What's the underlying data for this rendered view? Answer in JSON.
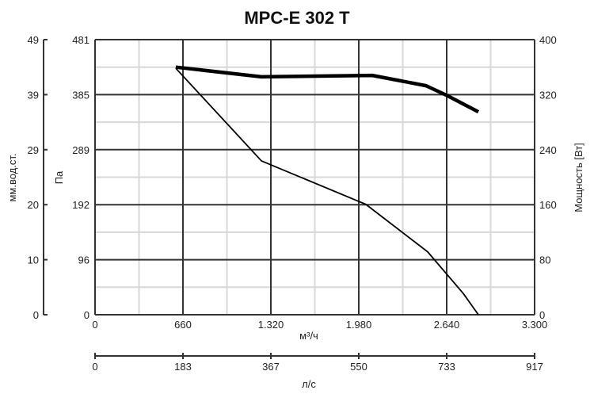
{
  "chart_data": {
    "type": "line",
    "title": "MPC-E 302 T",
    "xlabel": "м³/ч",
    "xlabel_secondary": "л/с",
    "ylabel_left_outer": "мм.вод.ст.",
    "ylabel_left": "Па",
    "ylabel_right": "Мощность [Вт]",
    "xlim": [
      0,
      3300
    ],
    "ylim": [
      0,
      481
    ],
    "ylim_right": [
      0,
      400
    ],
    "grid": true,
    "x_ticks": [
      "0",
      "660",
      "1.320",
      "1.980",
      "2.640",
      "3.300"
    ],
    "x2_ticks": [
      "0",
      "183",
      "367",
      "550",
      "733",
      "917"
    ],
    "y_ticks": [
      "0",
      "96",
      "192",
      "289",
      "385",
      "481"
    ],
    "y_outer_ticks": [
      "0",
      "10",
      "20",
      "29",
      "39",
      "49"
    ],
    "y_right_ticks": [
      "0",
      "80",
      "160",
      "240",
      "320",
      "400"
    ],
    "series": [
      {
        "axis": "left",
        "x": [
          606,
          1011,
          1249,
          2033,
          2497,
          2765,
          2878
        ],
        "y": [
          431,
          329,
          269,
          193,
          110,
          37,
          0
        ]
      },
      {
        "axis": "right",
        "x": [
          606,
          1249,
          2081,
          2485,
          2640,
          2878
        ],
        "y": [
          360,
          346,
          348,
          333,
          319,
          295
        ]
      }
    ],
    "colors": {
      "line": "#000000",
      "grid_major": "#333333",
      "grid_minor": "#d8d8d8"
    }
  }
}
